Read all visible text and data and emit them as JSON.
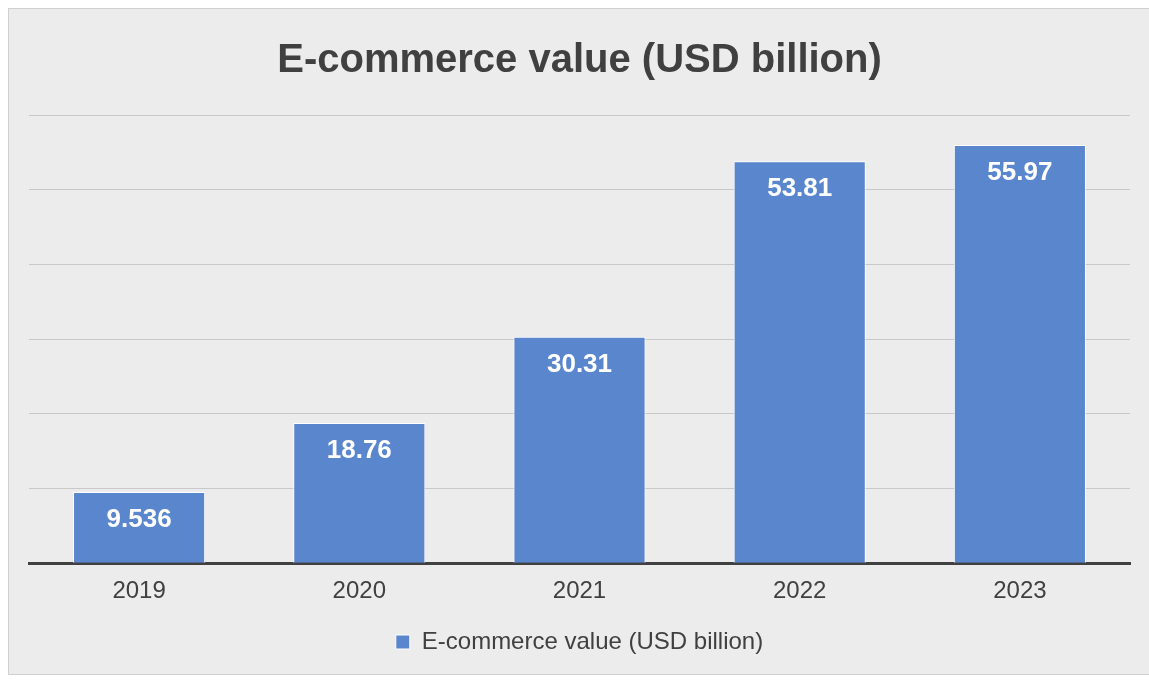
{
  "chart_data": {
    "type": "bar",
    "title": "E-commerce value (USD billion)",
    "categories": [
      "2019",
      "2020",
      "2021",
      "2022",
      "2023"
    ],
    "series": [
      {
        "name": "E-commerce value (USD billion)",
        "color": "#5a86cd",
        "values": [
          9.536,
          18.76,
          30.31,
          53.81,
          55.97
        ]
      }
    ],
    "ylim": [
      0,
      60
    ],
    "tick_labels": "x",
    "grid": "y",
    "legend": "bottom",
    "data_labels": true
  }
}
